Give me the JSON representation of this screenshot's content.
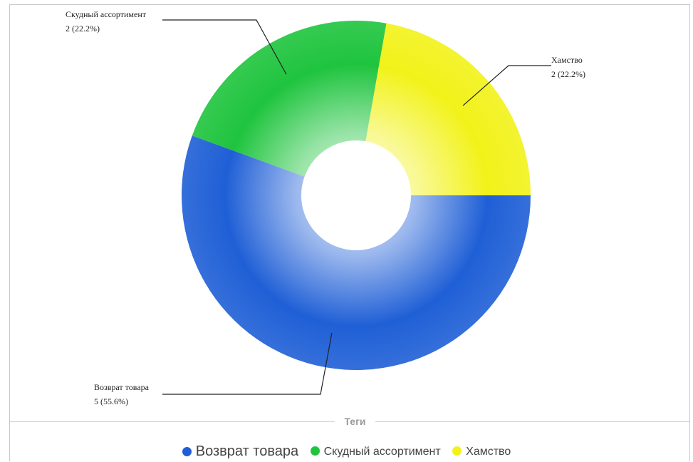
{
  "chart_data": {
    "type": "pie",
    "variant": "donut",
    "categories": [
      "Возврат товара",
      "Скудный ассортимент",
      "Хамство"
    ],
    "values": [
      5,
      2,
      2
    ],
    "percent_labels": [
      "5 (55.6%)",
      "2 (22.2%)",
      "2 (22.2%)"
    ],
    "colors": [
      "#1f5fd6",
      "#1fc43e",
      "#f2f21a"
    ],
    "start_angle_deg": 0,
    "legend_title": "Теги",
    "legend_position": "bottom-center"
  },
  "legend": {
    "title": "Теги",
    "items": [
      {
        "label": "Возврат товара",
        "color": "#1f5fd6"
      },
      {
        "label": "Скудный ассортимент",
        "color": "#1fc43e"
      },
      {
        "label": "Хамство",
        "color": "#f2f21a"
      }
    ]
  }
}
